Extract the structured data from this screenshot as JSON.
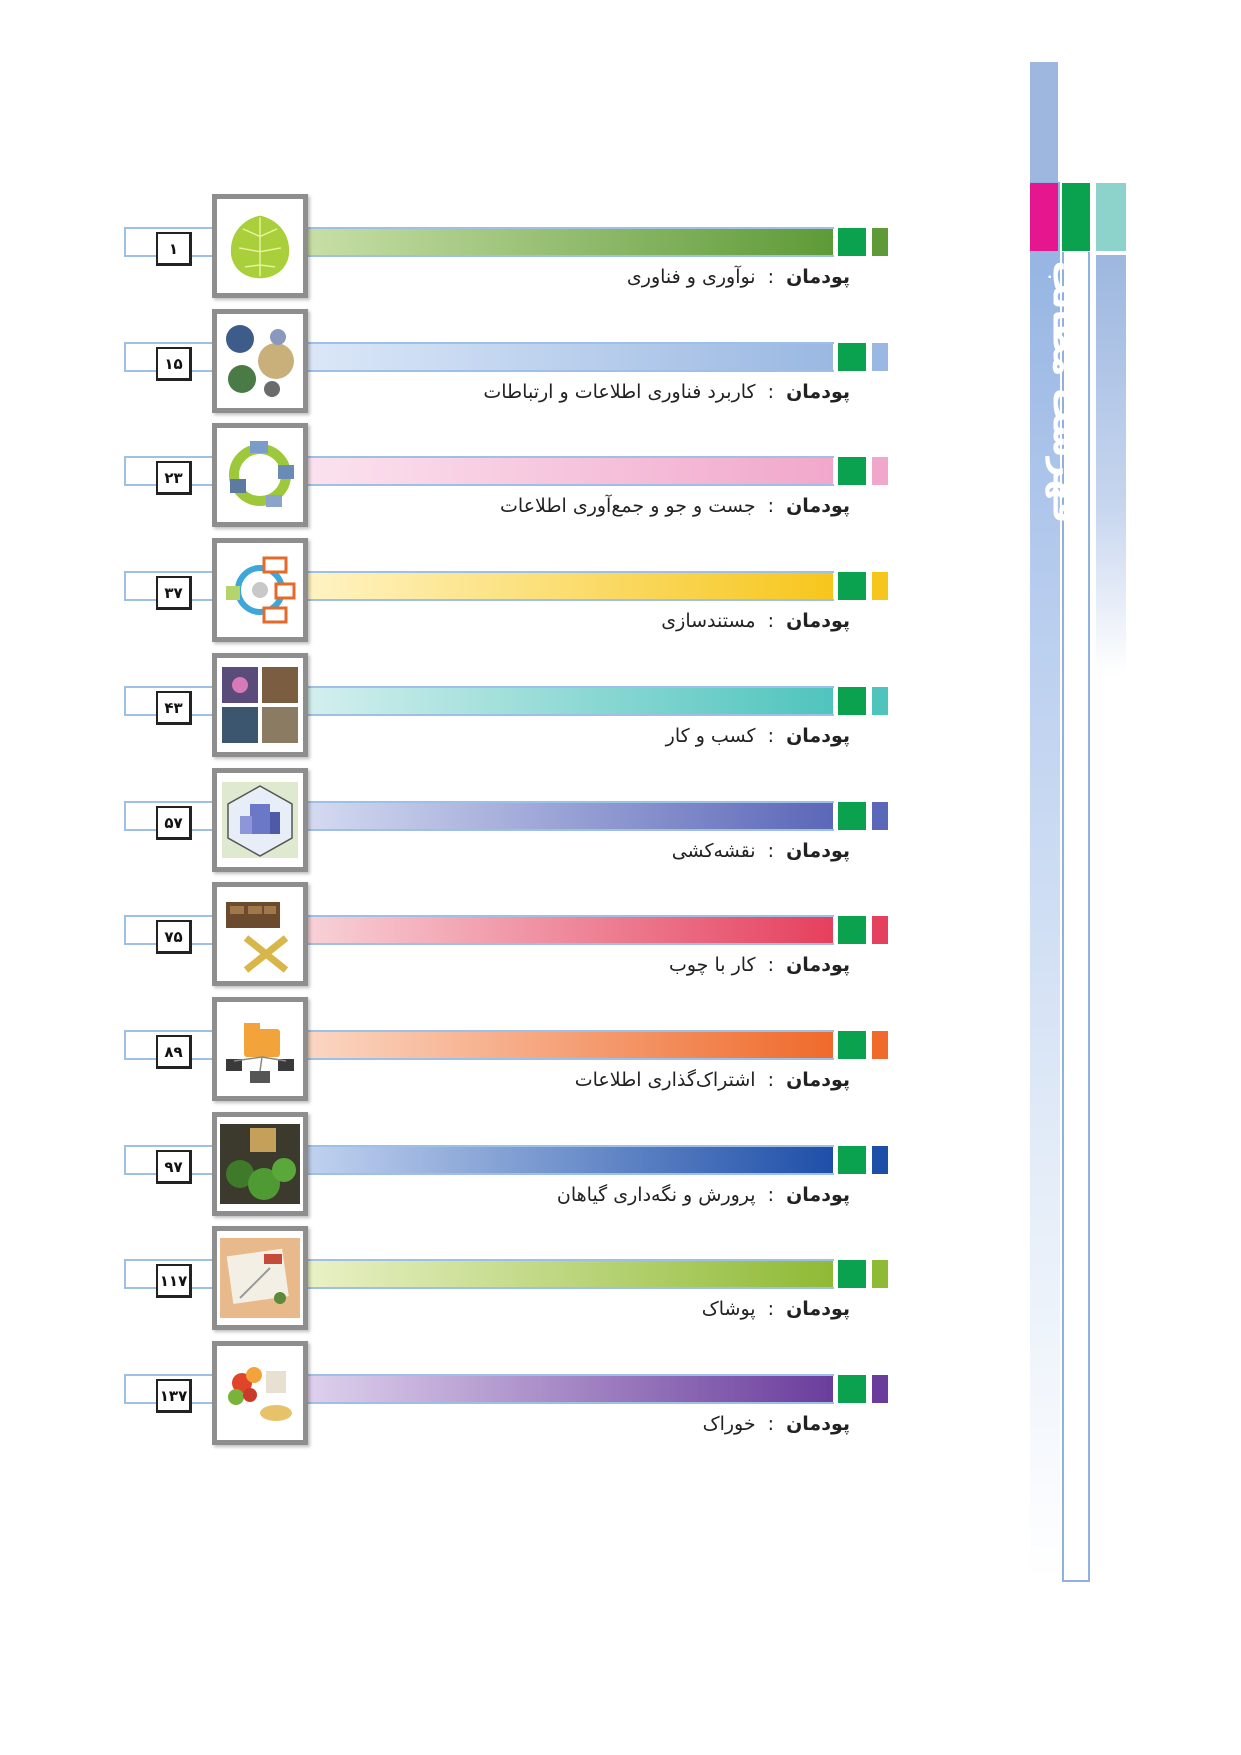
{
  "side_title": "فهرست مطالب",
  "entry_label": "پودمان",
  "separator": ":",
  "entries": [
    {
      "title": "نوآوری و فناوری",
      "page": "۱",
      "color_a": "#c9e0a8",
      "color_b": "#5e9a37",
      "accent": "#5e9a37",
      "icon": "leaf-icon"
    },
    {
      "title": "کاربرد فناوری اطلاعات و ارتباطات",
      "page": "۱۵",
      "color_a": "#dce8f8",
      "color_b": "#9ab8e2",
      "accent": "#9ab8e2",
      "icon": "ict-collage-icon"
    },
    {
      "title": "جست و جو و جمع‌آوری اطلاعات",
      "page": "۲۳",
      "color_a": "#fbe3ef",
      "color_b": "#f1a7cb",
      "accent": "#f1a7cb",
      "icon": "search-cycle-icon"
    },
    {
      "title": "مستندسازی",
      "page": "۳۷",
      "color_a": "#fff4c6",
      "color_b": "#f7c61c",
      "accent": "#f7c61c",
      "icon": "documentation-icon"
    },
    {
      "title": "کسب و کار",
      "page": "۴۳",
      "color_a": "#d5f0ee",
      "color_b": "#4fc4bd",
      "accent": "#4fc4bd",
      "icon": "business-collage-icon"
    },
    {
      "title": "نقشه‌کشی",
      "page": "۵۷",
      "color_a": "#d6dcf1",
      "color_b": "#5b67b8",
      "accent": "#5b67b8",
      "icon": "drafting-icon"
    },
    {
      "title": "کار با چوب",
      "page": "۷۵",
      "color_a": "#f8d3d9",
      "color_b": "#e5405e",
      "accent": "#e5405e",
      "icon": "woodwork-icon"
    },
    {
      "title": "اشتراک‌گذاری اطلاعات",
      "page": "۸۹",
      "color_a": "#fbd8c5",
      "color_b": "#ef6a2b",
      "accent": "#ef6a2b",
      "icon": "shared-folder-icon"
    },
    {
      "title": "پرورش و نگه‌داری گیاهان",
      "page": "۹۷",
      "color_a": "#c3d4f0",
      "color_b": "#1e4fa8",
      "accent": "#1e4fa8",
      "icon": "plants-icon"
    },
    {
      "title": "پوشاک",
      "page": "۱۱۷",
      "color_a": "#eaf2c8",
      "color_b": "#8fba35",
      "accent": "#8fba35",
      "icon": "clothing-icon"
    },
    {
      "title": "خوراک",
      "page": "۱۳۷",
      "color_a": "#e0d3ee",
      "color_b": "#6a3d9c",
      "accent": "#6a3d9c",
      "icon": "food-icon"
    }
  ]
}
